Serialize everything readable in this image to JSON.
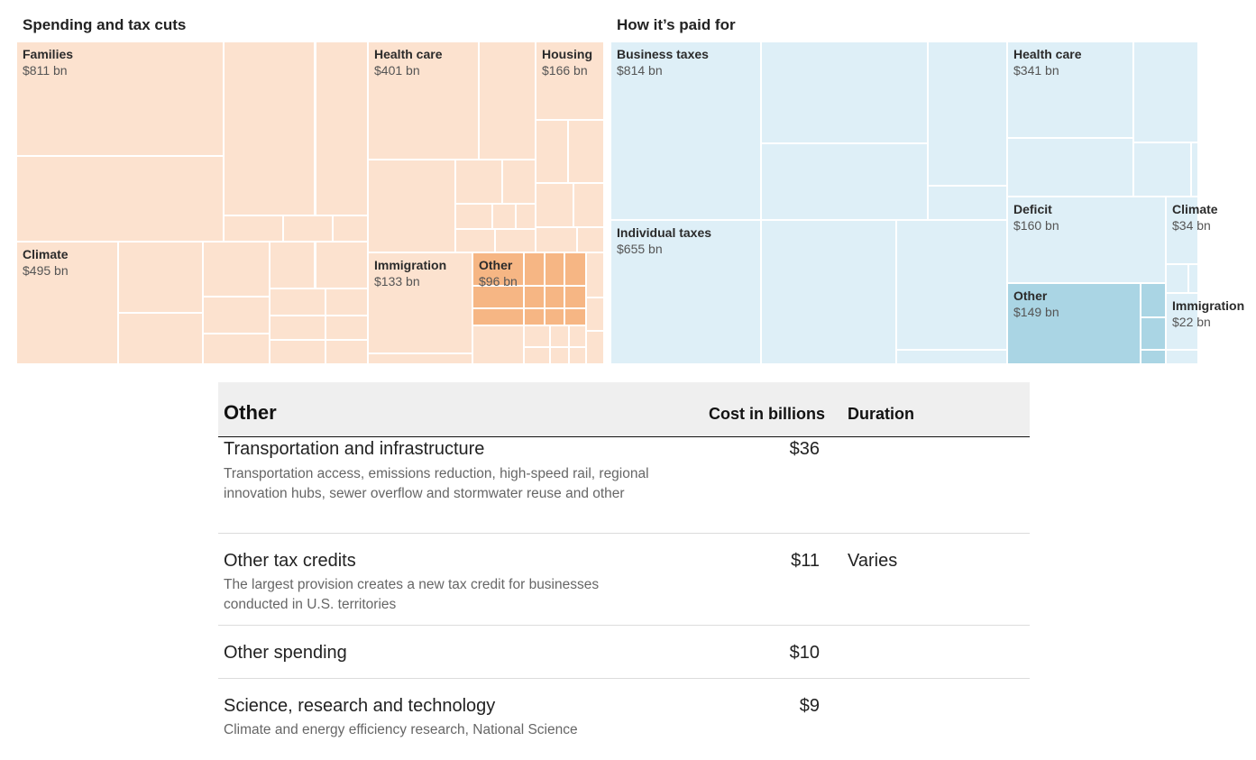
{
  "chart_data": [
    {
      "type": "treemap",
      "title": "Spending and tax cuts",
      "groups": [
        {
          "name": "Families",
          "value_label": "$811 bn",
          "value": 811,
          "highlighted": false
        },
        {
          "name": "Climate",
          "value_label": "$495 bn",
          "value": 495,
          "highlighted": false
        },
        {
          "name": "Health care",
          "value_label": "$401 bn",
          "value": 401,
          "highlighted": false
        },
        {
          "name": "Housing",
          "value_label": "$166 bn",
          "value": 166,
          "highlighted": false
        },
        {
          "name": "Immigration",
          "value_label": "$133 bn",
          "value": 133,
          "highlighted": false
        },
        {
          "name": "Other",
          "value_label": "$96 bn",
          "value": 96,
          "highlighted": true
        }
      ],
      "colors": {
        "base": "#fce2cf",
        "highlight": "#f6b684"
      }
    },
    {
      "type": "treemap",
      "title": "How it’s paid for",
      "groups": [
        {
          "name": "Business taxes",
          "value_label": "$814 bn",
          "value": 814,
          "highlighted": false
        },
        {
          "name": "Individual taxes",
          "value_label": "$655 bn",
          "value": 655,
          "highlighted": false
        },
        {
          "name": "Health care",
          "value_label": "$341 bn",
          "value": 341,
          "highlighted": false
        },
        {
          "name": "Deficit",
          "value_label": "$160 bn",
          "value": 160,
          "highlighted": false
        },
        {
          "name": "Other",
          "value_label": "$149 bn",
          "value": 149,
          "highlighted": true
        },
        {
          "name": "Climate",
          "value_label": "$34 bn",
          "value": 34,
          "highlighted": false
        },
        {
          "name": "Immigration",
          "value_label": "$22 bn",
          "value": 22,
          "highlighted": false
        }
      ],
      "colors": {
        "base": "#deeff7",
        "highlight": "#aad5e4"
      }
    }
  ],
  "table": {
    "title": "Other",
    "columns": {
      "cost": "Cost in billions",
      "duration": "Duration"
    },
    "rows": [
      {
        "name": "Transportation and infrastructure",
        "description": "Transportation access, emissions reduction, high-speed rail, regional innovation hubs, sewer overflow and stormwater reuse and other",
        "cost": "$36",
        "duration": ""
      },
      {
        "name": "Other tax credits",
        "description": "The largest provision creates a new tax credit for businesses conducted in U.S. territories",
        "cost": "$11",
        "duration": "Varies"
      },
      {
        "name": "Other spending",
        "description": "",
        "cost": "$10",
        "duration": ""
      },
      {
        "name": "Science, research and technology",
        "description": "Climate and energy efficiency research, National Science",
        "cost": "$9",
        "duration": ""
      }
    ]
  }
}
